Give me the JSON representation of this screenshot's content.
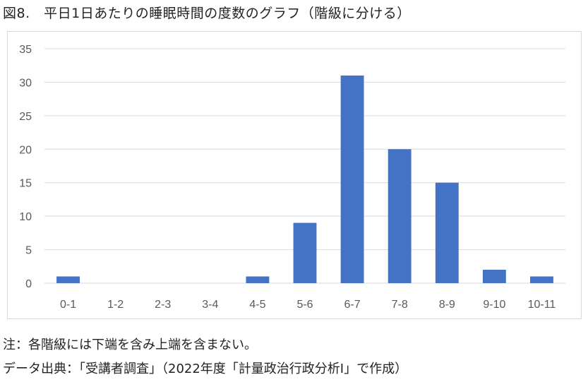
{
  "title": "図8.　平日1日あたりの睡眠時間の度数のグラフ（階級に分ける）",
  "notes": {
    "note1": "注：各階級には下端を含み上端を含まない。",
    "note2": "データ出典：「受講者調査」（2022年度「計量政治行政分析Ⅰ」で作成）"
  },
  "chart_data": {
    "type": "bar",
    "title": "",
    "xlabel": "",
    "ylabel": "",
    "categories": [
      "0-1",
      "1-2",
      "2-3",
      "3-4",
      "4-5",
      "5-6",
      "6-7",
      "7-8",
      "8-9",
      "9-10",
      "10-11"
    ],
    "values": [
      1,
      0,
      0,
      0,
      1,
      9,
      31,
      20,
      15,
      2,
      1
    ],
    "ylim": [
      0,
      35
    ],
    "yticks": [
      0,
      5,
      10,
      15,
      20,
      25,
      30,
      35
    ],
    "grid": true,
    "bar_color": "#4472c4",
    "grid_color": "#d9d9d9"
  }
}
